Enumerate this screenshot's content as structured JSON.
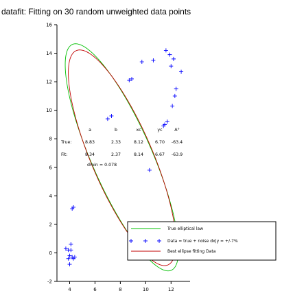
{
  "title": "datafit: Fitting on 30 random unweighted data points",
  "chart_data": {
    "type": "scatter",
    "xlim": [
      3,
      13.5
    ],
    "ylim": [
      -2,
      16
    ],
    "x_ticks": [
      4,
      6,
      8,
      10,
      12
    ],
    "y_ticks": [
      -2,
      0,
      2,
      4,
      6,
      8,
      10,
      12,
      14,
      16
    ],
    "grid": false,
    "legend_position": "bottom-right",
    "series": [
      {
        "name": "True elliptical law",
        "kind": "ellipse",
        "color": "#00c000",
        "params": {
          "a": 8.83,
          "b": 2.33,
          "xc": 8.12,
          "yc": 6.7,
          "angle_deg": -63.4
        }
      },
      {
        "name": "Data = true + noise dx|y = +/-7%",
        "kind": "points",
        "color": "#0000ff",
        "marker": "plus",
        "points": [
          [
            4.2,
            3.1
          ],
          [
            4.3,
            3.2
          ],
          [
            4.1,
            0.6
          ],
          [
            4.1,
            0.2
          ],
          [
            3.9,
            0.2
          ],
          [
            4.0,
            -0.2
          ],
          [
            4.2,
            -0.3
          ],
          [
            4.3,
            -0.4
          ],
          [
            3.9,
            -0.4
          ],
          [
            4.0,
            -0.8
          ],
          [
            4.4,
            -0.3
          ],
          [
            3.7,
            0.3
          ],
          [
            7.0,
            9.4
          ],
          [
            7.3,
            9.6
          ],
          [
            8.7,
            12.1
          ],
          [
            8.9,
            12.2
          ],
          [
            9.7,
            13.4
          ],
          [
            10.6,
            13.5
          ],
          [
            11.9,
            13.9
          ],
          [
            12.2,
            13.6
          ],
          [
            11.6,
            14.2
          ],
          [
            12.8,
            12.7
          ],
          [
            12.4,
            11.5
          ],
          [
            12.3,
            11.0
          ],
          [
            12.0,
            13.1
          ],
          [
            12.1,
            10.3
          ],
          [
            11.7,
            9.2
          ],
          [
            11.4,
            8.9
          ],
          [
            11.5,
            9.0
          ],
          [
            10.3,
            5.8
          ]
        ]
      },
      {
        "name": "Best ellipse fitting Data",
        "kind": "ellipse",
        "color": "#c00000",
        "params": {
          "a": 8.34,
          "b": 2.37,
          "xc": 8.14,
          "yc": 6.67,
          "angle_deg": -63.9
        }
      }
    ],
    "annotation": {
      "headers": [
        "a",
        "b",
        "xc",
        "yc",
        "A°"
      ],
      "rows": [
        {
          "label": "True:",
          "values": [
            "8.83",
            "2.33",
            "8.12",
            "6.70",
            "-63.4"
          ]
        },
        {
          "label": "Fit:",
          "values": [
            "8.34",
            "2.37",
            "8.14",
            "6.67",
            "-63.9"
          ]
        }
      ],
      "dmin": "dmin = 0.078"
    }
  }
}
